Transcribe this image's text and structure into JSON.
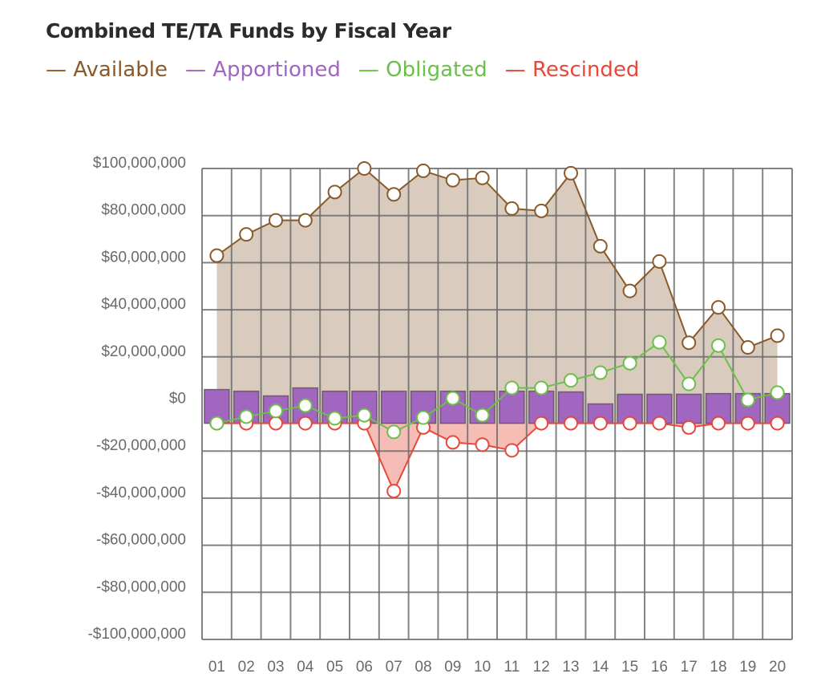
{
  "chart_data": {
    "type": "line",
    "title": "Combined TE/TA Funds by Fiscal Year",
    "xlabel": "",
    "ylabel": "",
    "categories": [
      "01",
      "02",
      "03",
      "04",
      "05",
      "06",
      "07",
      "08",
      "09",
      "10",
      "11",
      "12",
      "13",
      "14",
      "15",
      "16",
      "17",
      "18",
      "19",
      "20"
    ],
    "ylim": [
      -100000000,
      100000000
    ],
    "yticks": [
      100000000,
      80000000,
      60000000,
      40000000,
      20000000,
      0,
      -20000000,
      -40000000,
      -60000000,
      -80000000,
      -100000000
    ],
    "ytick_labels": [
      "$100,000,000",
      "$80,000,000",
      "$60,000,000",
      "$40,000,000",
      "$20,000,000",
      "$0",
      "-$20,000,000",
      "-$40,000,000",
      "-$60,000,000",
      "-$80,000,000",
      "-$100,000,000"
    ],
    "grid": true,
    "legend_placement": "top-left",
    "series": [
      {
        "name": "Available",
        "legend_label": "— Available",
        "kind": "area-line",
        "color": "#8a5a2b",
        "fill": "#d9cbbd",
        "values": [
          63000000,
          72000000,
          78000000,
          78000000,
          90000000,
          100000000,
          89000000,
          99000000,
          95000000,
          96000000,
          83000000,
          82000000,
          98000000,
          67000000,
          48000000,
          60500000,
          26000000,
          41000000,
          24000000,
          29000000
        ]
      },
      {
        "name": "Apportioned",
        "legend_label": "— Apportioned",
        "kind": "bar",
        "color": "#a066c0",
        "values": [
          6100000,
          5400000,
          3400000,
          6800000,
          5400000,
          5400000,
          5400000,
          5400000,
          5400000,
          5400000,
          5400000,
          5400000,
          5100000,
          0,
          4100000,
          4100000,
          4100000,
          4400000,
          4400000,
          4400000
        ]
      },
      {
        "name": "Obligated",
        "legend_label": "— Obligated",
        "kind": "line",
        "color": "#6cc04a",
        "values": [
          -8200000,
          -5400000,
          -3000000,
          -700000,
          -6100000,
          -4800000,
          -11900000,
          -5800000,
          2400000,
          -4800000,
          6800000,
          6800000,
          10000000,
          13300000,
          17300000,
          26200000,
          8500000,
          24800000,
          1700000,
          4800000
        ]
      },
      {
        "name": "Rescinded",
        "legend_label": "— Rescinded",
        "kind": "area-line",
        "color": "#e8473a",
        "fill": "#f6bdb6",
        "values": [
          -8200000,
          -8200000,
          -8200000,
          -8200000,
          -8200000,
          -8200000,
          -37000000,
          -10000000,
          -16300000,
          -17300000,
          -19700000,
          -8200000,
          -8200000,
          -8200000,
          -8200000,
          -8200000,
          -10000000,
          -8200000,
          -8200000,
          -8200000
        ]
      }
    ]
  }
}
